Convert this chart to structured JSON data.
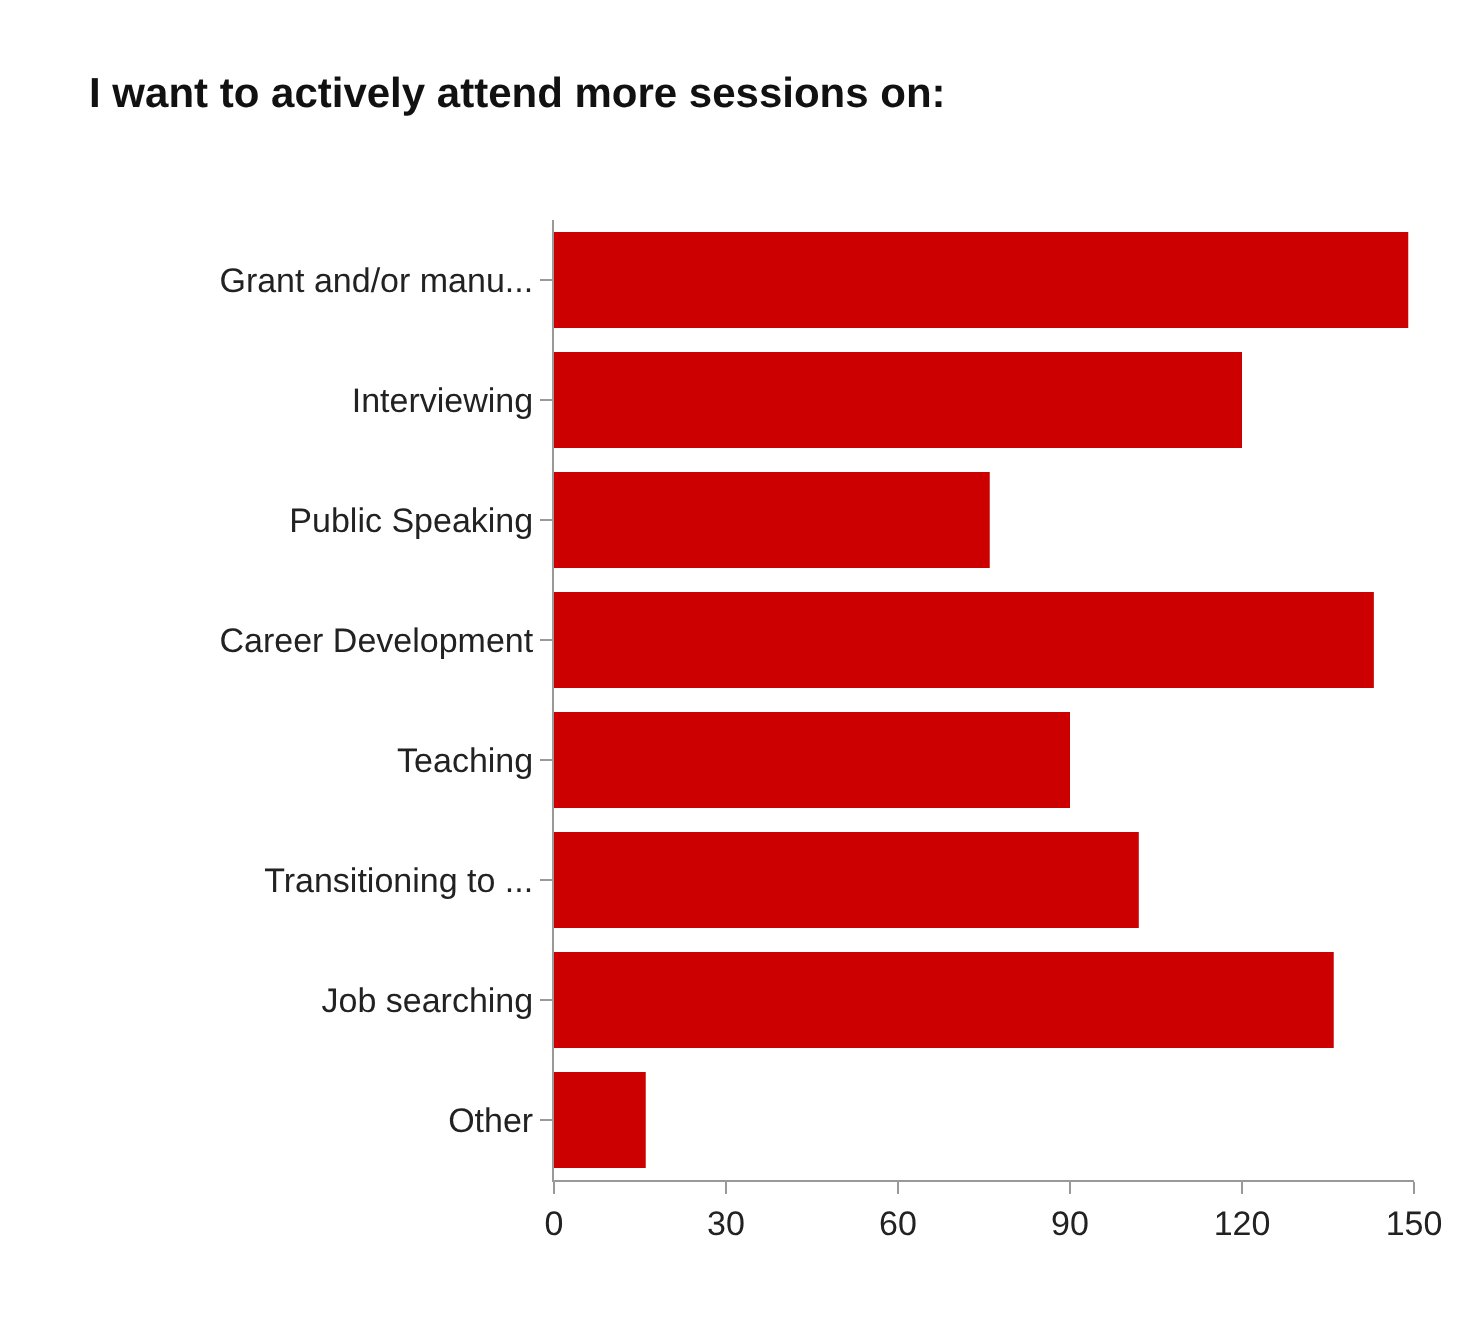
{
  "chart_data": {
    "type": "bar",
    "orientation": "horizontal",
    "title": "I want to actively attend more sessions on:",
    "categories": [
      "Grant and/or manu...",
      "Interviewing",
      "Public Speaking",
      "Career Development",
      "Teaching",
      "Transitioning to ...",
      "Job searching",
      "Other"
    ],
    "values": [
      149,
      120,
      76,
      143,
      90,
      102,
      136,
      16
    ],
    "color": "#cc0000",
    "xlim": [
      0,
      150
    ],
    "xticks": [
      0,
      30,
      60,
      90,
      120,
      150
    ]
  }
}
